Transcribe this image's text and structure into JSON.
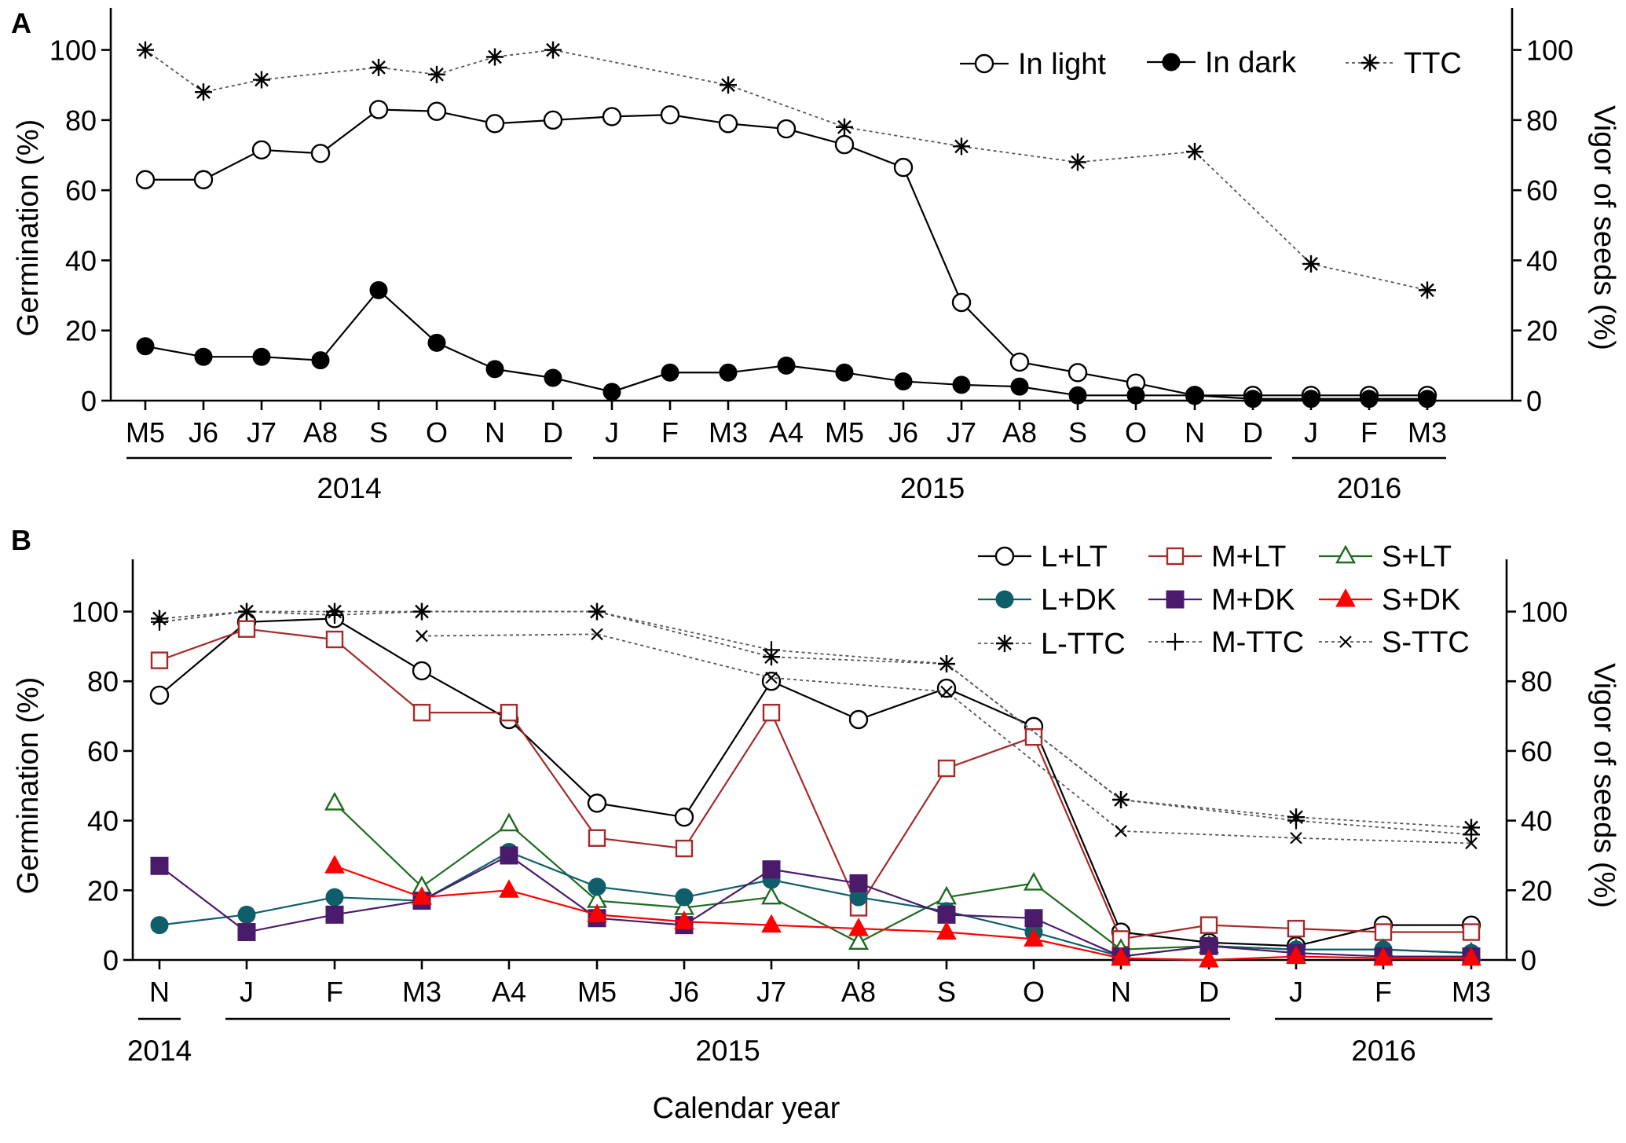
{
  "figure": {
    "width": 2070,
    "height": 1455,
    "xlabel": "Calendar year"
  },
  "chart_data": [
    {
      "type": "line",
      "panel_label": "A",
      "ylabel_left": "Germination (%)",
      "ylabel_right": "Vigor of seeds (%)",
      "ylim": [
        0,
        112
      ],
      "yticks": [
        0,
        20,
        40,
        60,
        80,
        100
      ],
      "categories": [
        "M5",
        "J6",
        "J7",
        "A8",
        "S",
        "O",
        "N",
        "D",
        "J",
        "F",
        "M3",
        "A4",
        "M5",
        "J6",
        "J7",
        "A8",
        "S",
        "O",
        "N",
        "D",
        "J",
        "F",
        "M3"
      ],
      "year_groups": [
        {
          "label": "2014",
          "from": 0,
          "to": 7
        },
        {
          "label": "2015",
          "from": 8,
          "to": 19
        },
        {
          "label": "2016",
          "from": 20,
          "to": 22
        }
      ],
      "series": [
        {
          "name": "In light",
          "marker": "circle-open",
          "dashed": false,
          "color": "#000000",
          "values": [
            63,
            63,
            71.5,
            70.5,
            83,
            82.5,
            79,
            80,
            81,
            81.5,
            79,
            77.5,
            73,
            66.5,
            28,
            11,
            8,
            5,
            1.5,
            1.5,
            1.5,
            1.5,
            1.5
          ]
        },
        {
          "name": "In dark",
          "marker": "circle-filled",
          "dashed": false,
          "color": "#000000",
          "values": [
            15.5,
            12.5,
            12.5,
            11.5,
            31.5,
            16.5,
            9,
            6.5,
            2.5,
            8,
            8,
            10,
            8,
            5.5,
            4.5,
            4,
            1.5,
            1.5,
            1.5,
            0.5,
            0.5,
            0.5,
            0.5
          ]
        },
        {
          "name": "TTC",
          "marker": "asterisk",
          "dashed": true,
          "color": "#000000",
          "values": [
            100,
            88,
            91.5,
            null,
            95,
            93,
            98,
            100,
            null,
            null,
            90,
            null,
            78,
            null,
            72.5,
            null,
            68,
            null,
            71,
            null,
            39,
            null,
            31.5
          ]
        }
      ]
    },
    {
      "type": "line",
      "panel_label": "B",
      "ylabel_left": "Germination (%)",
      "ylabel_right": "Vigor of seeds (%)",
      "ylim": [
        0,
        115
      ],
      "yticks": [
        0,
        20,
        40,
        60,
        80,
        100
      ],
      "categories": [
        "N",
        "J",
        "F",
        "M3",
        "A4",
        "M5",
        "J6",
        "J7",
        "A8",
        "S",
        "O",
        "N",
        "D",
        "J",
        "F",
        "M3"
      ],
      "year_groups": [
        {
          "label": "2014",
          "from": 0,
          "to": 0
        },
        {
          "label": "2015",
          "from": 1,
          "to": 12
        },
        {
          "label": "2016",
          "from": 13,
          "to": 15
        }
      ],
      "series": [
        {
          "name": "L+LT",
          "marker": "circle-open",
          "dashed": false,
          "color": "#000000",
          "values": [
            76,
            97,
            98,
            83,
            69,
            45,
            41,
            80,
            69,
            78,
            67,
            8,
            5,
            4,
            10,
            10
          ]
        },
        {
          "name": "M+LT",
          "marker": "square-open",
          "dashed": false,
          "color": "#a52a2a",
          "values": [
            86,
            95,
            92,
            71,
            71,
            35,
            32,
            71,
            15,
            55,
            64,
            6,
            10,
            9,
            8,
            8
          ]
        },
        {
          "name": "S+LT",
          "marker": "triangle-open",
          "dashed": false,
          "color": "#1e6b1e",
          "values": [
            null,
            null,
            45,
            21,
            39,
            17,
            15,
            18,
            5,
            18,
            22,
            3,
            4,
            3,
            3,
            2
          ]
        },
        {
          "name": "L+DK",
          "marker": "circle-filled",
          "dashed": false,
          "color": "#0f5f6b",
          "values": [
            10,
            13,
            18,
            17,
            31,
            21,
            18,
            23,
            18,
            14,
            8,
            1,
            4,
            3,
            3,
            2
          ]
        },
        {
          "name": "M+DK",
          "marker": "square-filled",
          "dashed": false,
          "color": "#4b1b6b",
          "values": [
            27,
            8,
            13,
            17,
            30,
            12,
            10,
            26,
            22,
            13,
            12,
            1,
            4,
            2,
            1,
            1
          ]
        },
        {
          "name": "S+DK",
          "marker": "triangle-filled",
          "dashed": false,
          "color": "#ff0000",
          "values": [
            null,
            null,
            27,
            18,
            20,
            13,
            11,
            10,
            9,
            8,
            6,
            0.5,
            0,
            1,
            0.5,
            0.5
          ]
        },
        {
          "name": "L-TTC",
          "marker": "asterisk",
          "dashed": true,
          "color": "#000000",
          "values": [
            98,
            100,
            100,
            100,
            null,
            100,
            null,
            87,
            null,
            85,
            null,
            46,
            null,
            41,
            null,
            38
          ]
        },
        {
          "name": "M-TTC",
          "marker": "plus",
          "dashed": true,
          "color": "#000000",
          "values": [
            97,
            100,
            99,
            100,
            null,
            100,
            null,
            89,
            null,
            85,
            null,
            46,
            null,
            40,
            null,
            36
          ]
        },
        {
          "name": "S-TTC",
          "marker": "cross",
          "dashed": true,
          "color": "#000000",
          "values": [
            null,
            null,
            null,
            93,
            null,
            93.5,
            null,
            81,
            null,
            77,
            null,
            37,
            null,
            35,
            null,
            33.5
          ]
        }
      ]
    }
  ]
}
